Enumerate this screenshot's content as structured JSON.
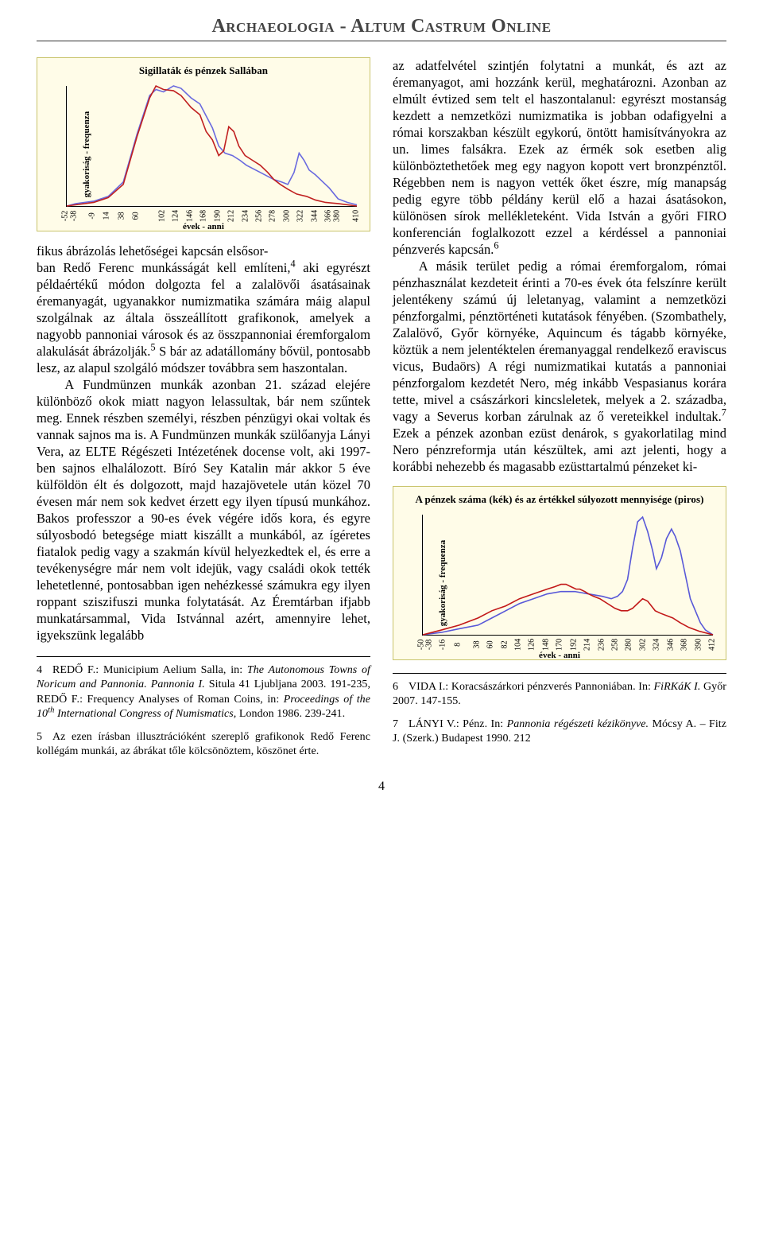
{
  "header": {
    "title": "Archaeologia - Altum Castrum Online"
  },
  "pagenum": "4",
  "chart1": {
    "title": "Sigillaták és pénzek Sallában",
    "ylabel": "gyakoriság - frequenza",
    "xlabel": "évek - anni",
    "bg": "#fffce8",
    "grid": "#c9c46c",
    "xmin": -52,
    "xmax": 410,
    "xticks": [
      "-52",
      "-38",
      "-9",
      "14",
      "38",
      "60",
      "102",
      "124",
      "146",
      "168",
      "190",
      "212",
      "234",
      "256",
      "278",
      "300",
      "322",
      "344",
      "366",
      "380",
      "410"
    ],
    "series": [
      {
        "color": "#6a6adf",
        "width": 1.6,
        "points": [
          [
            -52,
            0
          ],
          [
            -38,
            2
          ],
          [
            -9,
            4
          ],
          [
            14,
            8
          ],
          [
            38,
            20
          ],
          [
            60,
            60
          ],
          [
            80,
            92
          ],
          [
            90,
            97
          ],
          [
            102,
            95
          ],
          [
            118,
            100
          ],
          [
            130,
            98
          ],
          [
            146,
            90
          ],
          [
            160,
            85
          ],
          [
            170,
            75
          ],
          [
            180,
            65
          ],
          [
            190,
            50
          ],
          [
            200,
            44
          ],
          [
            212,
            42
          ],
          [
            224,
            38
          ],
          [
            234,
            34
          ],
          [
            256,
            28
          ],
          [
            278,
            22
          ],
          [
            290,
            20
          ],
          [
            300,
            18
          ],
          [
            310,
            28
          ],
          [
            318,
            44
          ],
          [
            326,
            38
          ],
          [
            334,
            30
          ],
          [
            344,
            26
          ],
          [
            356,
            20
          ],
          [
            366,
            15
          ],
          [
            380,
            6
          ],
          [
            395,
            3
          ],
          [
            410,
            1
          ]
        ]
      },
      {
        "color": "#c02020",
        "width": 1.6,
        "points": [
          [
            -52,
            0
          ],
          [
            -38,
            1
          ],
          [
            -9,
            3
          ],
          [
            14,
            7
          ],
          [
            38,
            18
          ],
          [
            60,
            58
          ],
          [
            80,
            90
          ],
          [
            90,
            100
          ],
          [
            102,
            97
          ],
          [
            118,
            96
          ],
          [
            130,
            92
          ],
          [
            146,
            82
          ],
          [
            160,
            76
          ],
          [
            170,
            62
          ],
          [
            180,
            55
          ],
          [
            190,
            42
          ],
          [
            198,
            46
          ],
          [
            206,
            66
          ],
          [
            214,
            62
          ],
          [
            222,
            50
          ],
          [
            232,
            42
          ],
          [
            244,
            38
          ],
          [
            256,
            34
          ],
          [
            268,
            28
          ],
          [
            278,
            22
          ],
          [
            288,
            18
          ],
          [
            300,
            14
          ],
          [
            314,
            10
          ],
          [
            330,
            8
          ],
          [
            344,
            5
          ],
          [
            360,
            3
          ],
          [
            380,
            2
          ],
          [
            410,
            0
          ]
        ]
      }
    ]
  },
  "chart2": {
    "title": "A pénzek száma (kék) és az értékkel súlyozott mennyisége (piros)",
    "ylabel": "gyakoriság - frequenza",
    "xlabel": "évek - anni",
    "bg": "#fffce8",
    "grid": "#c9c46c",
    "xmin": -50,
    "xmax": 412,
    "xticks": [
      "-50",
      "-38",
      "-16",
      "8",
      "38",
      "60",
      "82",
      "104",
      "126",
      "148",
      "170",
      "192",
      "214",
      "236",
      "258",
      "280",
      "302",
      "324",
      "346",
      "368",
      "390",
      "412"
    ],
    "series": [
      {
        "color": "#5858d8",
        "width": 1.6,
        "points": [
          [
            -50,
            0
          ],
          [
            -20,
            2
          ],
          [
            8,
            5
          ],
          [
            38,
            8
          ],
          [
            60,
            14
          ],
          [
            82,
            20
          ],
          [
            104,
            26
          ],
          [
            126,
            30
          ],
          [
            148,
            34
          ],
          [
            170,
            36
          ],
          [
            192,
            36
          ],
          [
            214,
            34
          ],
          [
            236,
            32
          ],
          [
            250,
            30
          ],
          [
            260,
            32
          ],
          [
            268,
            36
          ],
          [
            276,
            46
          ],
          [
            284,
            72
          ],
          [
            292,
            94
          ],
          [
            300,
            98
          ],
          [
            308,
            86
          ],
          [
            316,
            70
          ],
          [
            322,
            55
          ],
          [
            330,
            64
          ],
          [
            338,
            80
          ],
          [
            346,
            88
          ],
          [
            352,
            82
          ],
          [
            360,
            70
          ],
          [
            368,
            50
          ],
          [
            376,
            30
          ],
          [
            384,
            20
          ],
          [
            392,
            10
          ],
          [
            400,
            4
          ],
          [
            412,
            0
          ]
        ]
      },
      {
        "color": "#c21818",
        "width": 1.6,
        "points": [
          [
            -50,
            0
          ],
          [
            -20,
            4
          ],
          [
            8,
            8
          ],
          [
            38,
            14
          ],
          [
            60,
            20
          ],
          [
            82,
            24
          ],
          [
            104,
            30
          ],
          [
            126,
            34
          ],
          [
            148,
            38
          ],
          [
            160,
            40
          ],
          [
            170,
            42
          ],
          [
            178,
            42
          ],
          [
            186,
            40
          ],
          [
            194,
            38
          ],
          [
            200,
            38
          ],
          [
            208,
            36
          ],
          [
            214,
            34
          ],
          [
            222,
            32
          ],
          [
            232,
            30
          ],
          [
            244,
            26
          ],
          [
            256,
            22
          ],
          [
            266,
            20
          ],
          [
            276,
            20
          ],
          [
            284,
            22
          ],
          [
            292,
            26
          ],
          [
            300,
            30
          ],
          [
            308,
            28
          ],
          [
            314,
            24
          ],
          [
            320,
            20
          ],
          [
            328,
            18
          ],
          [
            338,
            16
          ],
          [
            348,
            14
          ],
          [
            360,
            10
          ],
          [
            374,
            6
          ],
          [
            390,
            3
          ],
          [
            412,
            0
          ]
        ]
      }
    ]
  },
  "left_lead": "fikus ábrázolás lehetőségei kapcsán elsősor-",
  "left_body": "ban Redő Ferenc munkásságát kell említeni,<sup>4</sup> aki egyrészt példaértékű módon dolgozta fel a zalalövői ásatásainak éremanyagát, ugyanakkor numizmatika számára máig alapul szolgálnak az általa összeállított grafikonok, amelyek a nagyobb pannoniai városok és az összpannoniai éremforgalom alakulását ábrázolják.<sup>5</sup> S bár az adatállomány bővül, pontosabb lesz, az alapul szolgáló módszer továbbra sem haszontalan.<br>&nbsp;&nbsp;&nbsp;A Fundmünzen munkák azonban 21. század elejére különböző okok miatt nagyon lelassultak, bár nem szűntek meg. Ennek részben személyi, részben pénzügyi okai voltak és vannak sajnos ma is. A Fundmünzen munkák szülőanyja Lányi Vera, az ELTE Régészeti Intézetének docense volt, aki 1997-ben sajnos elhalálozott. Bíró Sey Katalin már akkor 5 éve külföldön élt és dolgozott, majd hazajövetele után közel 70 évesen már nem sok kedvet érzett egy ilyen típusú munkához. Bakos professzor a 90-es évek végére idős kora, és egyre súlyosbodó betegsége miatt kiszállt a munkából, az ígéretes fiatalok pedig vagy a szakmán kívül helyezkedtek el, és erre a tevékenységre már nem volt idejük, vagy családi okok tették lehetetlenné, pontosabban igen nehézkessé számukra egy ilyen roppant sziszifuszi munka folytatását. Az Éremtárban ifjabb munkatársammal, Vida Istvánnal azért, amennyire lehet, igyekszünk legalább",
  "right_body": "az adatfelvétel szintjén folytatni a munkát, és azt az éremanyagot, ami hozzánk kerül, meghatározni. Azonban az elmúlt évtized sem telt el haszontalanul: egyrészt mostanság kezdett a nemzetközi numizmatika is jobban odafigyelni a római korszakban készült egykorú, öntött hamisítványokra az un. limes falsákra. Ezek az érmék sok esetben alig különböztethetőek meg egy nagyon kopott vert bronzpénztől. Régebben nem is nagyon vették őket észre, míg manapság pedig egyre több példány kerül elő a hazai ásatásokon, különösen sírok mellékleteként. Vida István a győri FIRO konferencián foglalkozott ezzel a kérdéssel a pannoniai pénzverés kapcsán.<sup>6</sup><br>&nbsp;&nbsp;&nbsp;A másik terület pedig a római éremforgalom, római pénzhasználat kezdeteit érinti a 70-es évek óta felszínre került jelentékeny számú új leletanyag, valamint a nemzetközi pénzforgalmi, pénztörténeti kutatások fényében. (Szombathely, Zalalövő, Győr környéke, Aquincum és tágabb környéke, köztük a nem jelentéktelen éremanyaggal rendelkező eraviscus vicus, Budaörs) A régi numizmatikai kutatás a pannoniai pénzforgalom kezdetét Nero, még inkább Vespasianus korára tette, mivel a császárkori kincsleletek, melyek a 2. századba, vagy a Severus korban zárulnak az ő vereteikkel indultak.<sup>7</sup> Ezek a pénzek azonban ezüst denárok, s gyakorlatilag mind Nero pénzreformja után készültek, ami azt jelenti, hogy a korábbi nehezebb és magasabb ezüsttartalmú pénzeket ki-",
  "fn_left": [
    {
      "n": "4",
      "t": "REDŐ F.: Municipium Aelium Salla, in: <span class=\"it\">The Autonomous Towns of Noricum and Pannonia. Pannonia I.</span> Situla 41 Ljubljana 2003. 191-235, REDŐ F.: Frequency Analyses of Roman Coins, in: <span class=\"it\">Proceedings of the 10<sup>th</sup> International Congress of Numismatics,</span> London 1986. 239-241."
    },
    {
      "n": "5",
      "t": "Az ezen írásban illusztrációként szereplő grafikonok Redő Ferenc kollégám munkái, az ábrákat tőle kölcsönöztem, köszönet érte."
    }
  ],
  "fn_right": [
    {
      "n": "6",
      "t": "VIDA I.: Koracsászárkori pénzverés Pannoniában. In: <span class=\"it\">FiRKáK I.</span> Győr 2007. 147-155."
    },
    {
      "n": "7",
      "t": "LÁNYI V.: Pénz. In: <span class=\"it\">Pannonia régészeti kézikönyve.</span> Mócsy A. – Fitz J. (Szerk.) Budapest 1990. 212"
    }
  ]
}
